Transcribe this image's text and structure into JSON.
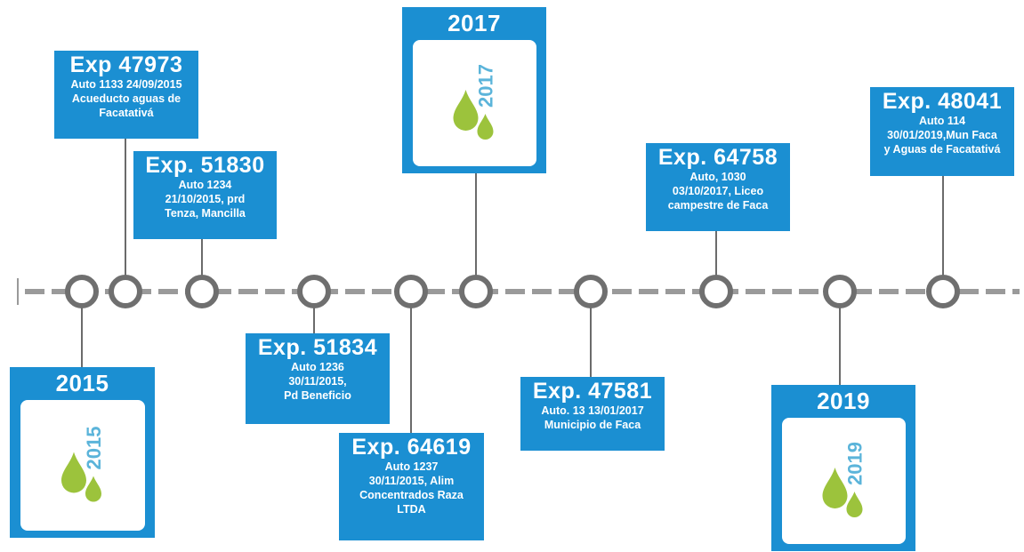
{
  "years": [
    {
      "year": "2015"
    },
    {
      "year": "2017"
    },
    {
      "year": "2019"
    }
  ],
  "events": [
    {
      "title": "Exp 47973",
      "lines": [
        "Auto 1133 24/09/2015",
        "Acueducto aguas de",
        "Facatativá"
      ]
    },
    {
      "title": "Exp. 51830",
      "lines": [
        "Auto 1234",
        "21/10/2015, prd",
        "Tenza, Mancilla"
      ]
    },
    {
      "title": "Exp. 51834",
      "lines": [
        "Auto 1236",
        "30/11/2015,",
        "Pd Beneficio"
      ]
    },
    {
      "title": "Exp. 64619",
      "lines": [
        "Auto 1237",
        "30/11/2015, Alim",
        "Concentrados Raza",
        "LTDA"
      ]
    },
    {
      "title": "Exp. 47581",
      "lines": [
        "Auto. 13 13/01/2017",
        "Municipio de Faca"
      ]
    },
    {
      "title": "Exp. 64758",
      "lines": [
        "Auto, 1030",
        "03/10/2017, Liceo",
        "campestre de Faca"
      ]
    },
    {
      "title": "Exp. 48041",
      "lines": [
        "Auto 114",
        "30/01/2019,Mun Faca",
        "y Aguas de Facatativá"
      ]
    }
  ]
}
